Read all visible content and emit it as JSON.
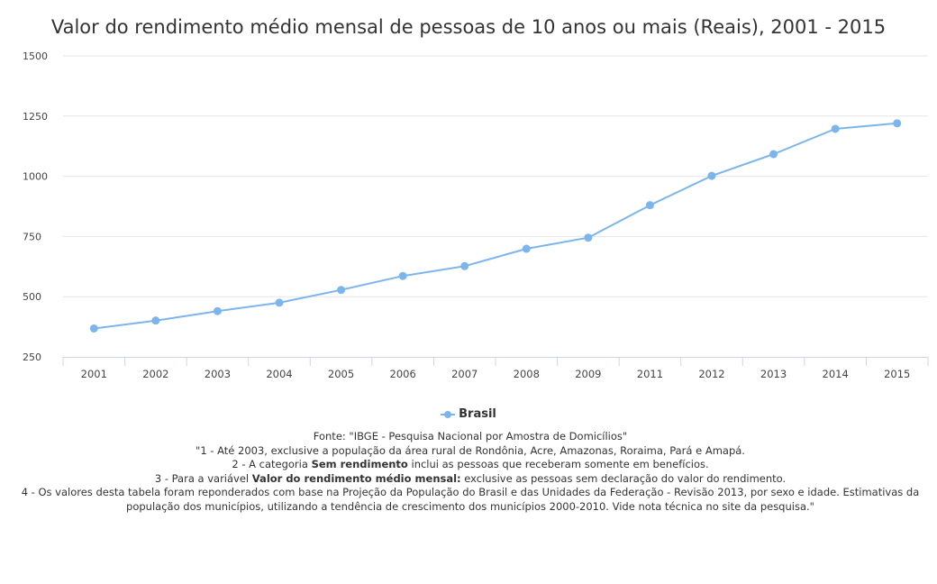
{
  "chart_data": {
    "type": "line",
    "title": "Valor do rendimento médio mensal de pessoas de 10 anos ou mais (Reais), 2001 - 2015",
    "xlabel": "",
    "ylabel": "",
    "categories": [
      "2001",
      "2002",
      "2003",
      "2004",
      "2005",
      "2006",
      "2007",
      "2008",
      "2009",
      "2011",
      "2012",
      "2013",
      "2014",
      "2015"
    ],
    "series": [
      {
        "name": "Brasil",
        "color": "#7cb5ec",
        "values": [
          368,
          401,
          440,
          475,
          528,
          586,
          627,
          699,
          745,
          880,
          1002,
          1092,
          1197,
          1220
        ]
      }
    ],
    "ylim": [
      250,
      1500
    ],
    "yticks": [
      250,
      500,
      750,
      1000,
      1250,
      1500
    ],
    "grid": true,
    "legend_position": "bottom-center"
  },
  "notes": {
    "line1": "Fonte: \"IBGE - Pesquisa Nacional por Amostra de Domicílios\"",
    "line2": "\"1 - Até 2003, exclusive a população da área rural de Rondônia, Acre, Amazonas, Roraima, Pará e Amapá.",
    "line3_pre": "2 - A categoria ",
    "line3_bold": "Sem rendimento",
    "line3_post": " inclui as pessoas que receberam somente em benefícios.",
    "line4_pre": "3 - Para a variável ",
    "line4_bold": "Valor do rendimento médio mensal:",
    "line4_post": " exclusive as pessoas sem declaração do valor do rendimento.",
    "line5": "4 - Os valores desta tabela foram reponderados com base na Projeção da População do Brasil e das Unidades da Federação - Revisão 2013, por sexo e idade. Estimativas da população dos municípios, utilizando a tendência de crescimento dos municípios 2000-2010. Vide nota técnica no site da pesquisa.\""
  }
}
